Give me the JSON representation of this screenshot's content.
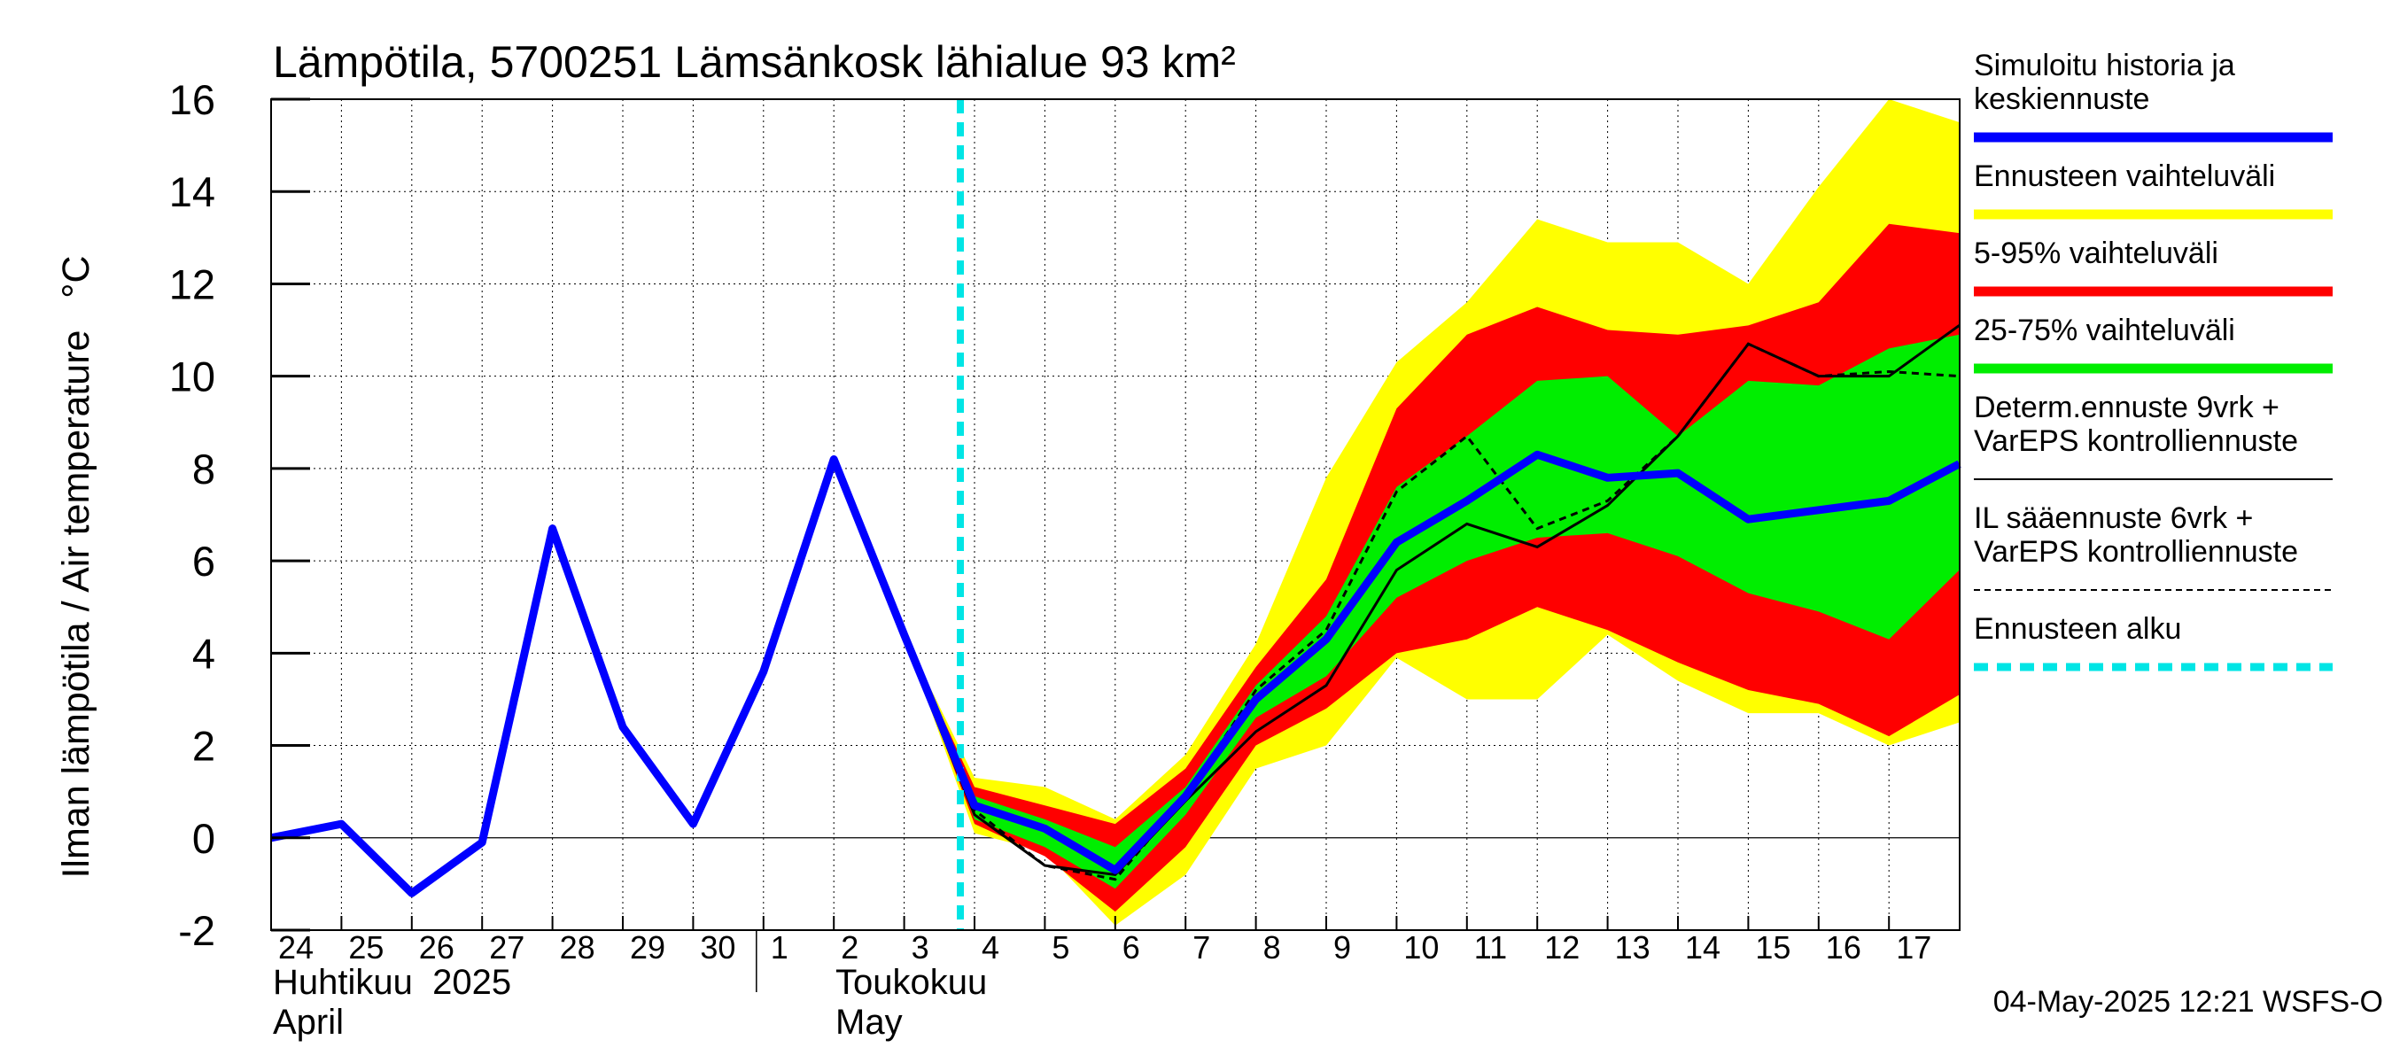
{
  "chart_data": {
    "type": "area",
    "title": "Lämpötila, 5700251 Lämsänkosk lähialue 93 km²",
    "ylabel": "Ilman lämpötila / Air temperature   °C",
    "ylim": [
      -2,
      16
    ],
    "yticks": [
      -2,
      0,
      2,
      4,
      6,
      8,
      10,
      12,
      14,
      16
    ],
    "x_day_labels": [
      "24",
      "25",
      "26",
      "27",
      "28",
      "29",
      "30",
      "1",
      "2",
      "3",
      "4",
      "5",
      "6",
      "7",
      "8",
      "9",
      "10",
      "11",
      "12",
      "13",
      "14",
      "15",
      "16",
      "17"
    ],
    "month_labels": {
      "april_fi": "Huhtikuu  2025",
      "april_en": "April",
      "may_fi": "Toukokuu",
      "may_en": "May"
    },
    "forecast_start": "2025-05-04",
    "x_dates": [
      "2025-04-24",
      "2025-04-25",
      "2025-04-26",
      "2025-04-27",
      "2025-04-28",
      "2025-04-29",
      "2025-04-30",
      "2025-05-01",
      "2025-05-02",
      "2025-05-03",
      "2025-05-04",
      "2025-05-05",
      "2025-05-06",
      "2025-05-07",
      "2025-05-08",
      "2025-05-09",
      "2025-05-10",
      "2025-05-11",
      "2025-05-12",
      "2025-05-13",
      "2025-05-14",
      "2025-05-15",
      "2025-05-16",
      "2025-05-17",
      "2025-05-18"
    ],
    "series": [
      {
        "name": "Simuloitu historia ja keskiennuste",
        "color": "#0000ff",
        "values": [
          0.0,
          0.3,
          -1.2,
          -0.1,
          6.7,
          2.4,
          0.3,
          3.6,
          8.2,
          4.4,
          0.7,
          0.2,
          -0.7,
          0.9,
          3.0,
          4.3,
          6.4,
          7.3,
          8.3,
          7.8,
          7.9,
          6.9,
          7.1,
          7.3,
          8.1
        ]
      },
      {
        "name": "Ennusteen vaihteluväli",
        "color": "#ffff00",
        "x_start": "2025-05-03",
        "upper": [
          4.4,
          1.3,
          1.1,
          0.4,
          1.8,
          4.2,
          7.8,
          10.3,
          11.6,
          13.4,
          12.9,
          12.9,
          12.0,
          14.1,
          16.0,
          15.5
        ],
        "lower": [
          4.4,
          0.1,
          -0.3,
          -1.9,
          -0.8,
          1.5,
          2.0,
          3.9,
          3.0,
          3.0,
          4.4,
          3.4,
          2.7,
          2.7,
          2.0,
          2.5
        ]
      },
      {
        "name": "5-95% vaihteluväli",
        "color": "#ff0000",
        "x_start": "2025-05-03",
        "upper": [
          4.4,
          1.1,
          0.7,
          0.3,
          1.5,
          3.7,
          5.6,
          9.3,
          10.9,
          11.5,
          11.0,
          10.9,
          11.1,
          11.6,
          13.3,
          13.1
        ],
        "lower": [
          4.4,
          0.3,
          -0.4,
          -1.6,
          -0.2,
          2.0,
          2.8,
          4.0,
          4.3,
          5.0,
          4.5,
          3.8,
          3.2,
          2.9,
          2.2,
          3.1
        ]
      },
      {
        "name": "25-75% vaihteluväli",
        "color": "#00ee00",
        "x_start": "2025-05-03",
        "upper": [
          4.4,
          0.9,
          0.4,
          -0.2,
          1.1,
          3.3,
          4.8,
          7.6,
          8.7,
          9.9,
          10.0,
          8.7,
          9.9,
          9.8,
          10.6,
          10.9
        ],
        "lower": [
          4.4,
          0.4,
          -0.2,
          -1.1,
          0.5,
          2.6,
          3.5,
          5.2,
          6.0,
          6.5,
          6.6,
          6.1,
          5.3,
          4.9,
          4.3,
          5.8
        ]
      },
      {
        "name": "Determ.ennuste 9vrk + VarEPS kontrolliennuste",
        "color": "#000000",
        "x_start": "2025-05-02",
        "values": [
          8.2,
          4.3,
          0.5,
          -0.6,
          -0.8,
          0.8,
          2.3,
          3.3,
          5.8,
          6.8,
          6.3,
          7.2,
          8.7,
          10.7,
          10.0,
          10.0,
          11.1
        ]
      },
      {
        "name": "IL sääennuste 6vrk  +   VarEPS kontrolliennuste",
        "color": "#000000",
        "dashed": true,
        "x_start": "2025-05-02",
        "values": [
          8.2,
          4.3,
          0.6,
          -0.6,
          -0.9,
          0.9,
          3.2,
          4.5,
          7.5,
          8.7,
          6.7,
          7.3,
          8.7,
          10.7,
          10.0,
          10.1,
          10.0
        ]
      }
    ],
    "legend": [
      {
        "label": "Simuloitu historia ja keskiennuste",
        "color": "#0000ff",
        "style": "thick"
      },
      {
        "label": "Ennusteen vaihteluväli",
        "color": "#ffff00",
        "style": "thick"
      },
      {
        "label": "5-95% vaihteluväli",
        "color": "#ff0000",
        "style": "thick"
      },
      {
        "label": "25-75% vaihteluväli",
        "color": "#00ee00",
        "style": "thick"
      },
      {
        "label": "Determ.ennuste 9vrk + VarEPS kontrolliennuste",
        "color": "#000000",
        "style": "thin"
      },
      {
        "label": "IL sääennuste 6vrk  +   VarEPS kontrolliennuste",
        "color": "#000000",
        "style": "dashed"
      },
      {
        "label": "Ennusteen alku",
        "color": "#00e5e5",
        "style": "thick-dashed"
      }
    ],
    "legend_placement": "right",
    "grid": true,
    "footer": "04-May-2025 12:21 WSFS-O"
  }
}
